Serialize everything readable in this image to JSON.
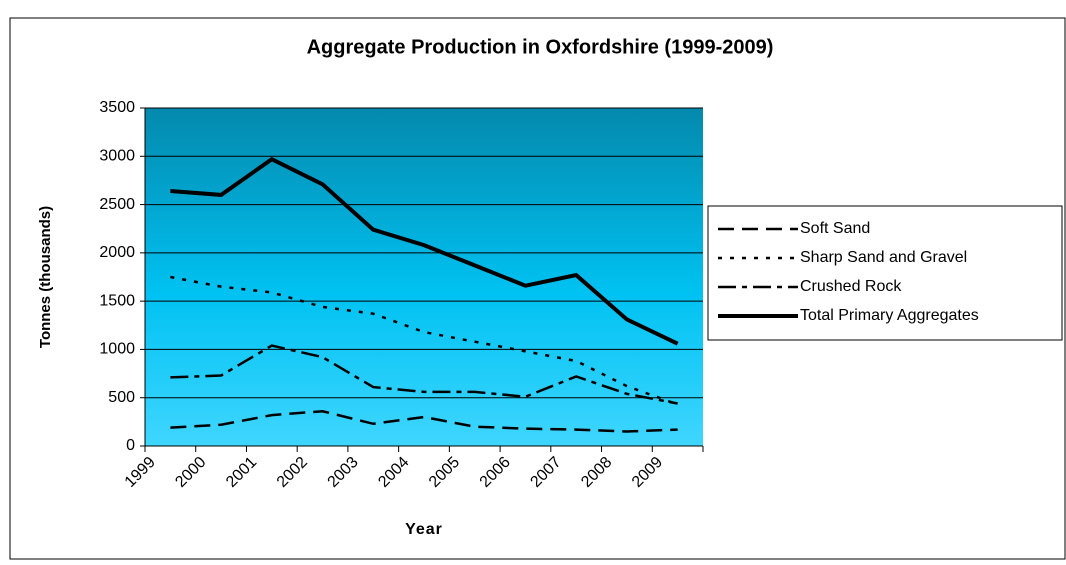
{
  "chart_data": {
    "type": "line",
    "title": "Aggregate Production in Oxfordshire (1999-2009)",
    "xlabel": "Year",
    "ylabel": "Tonnes (thousands)",
    "categories": [
      "1999",
      "2000",
      "2001",
      "2002",
      "2003",
      "2004",
      "2005",
      "2006",
      "2007",
      "2008",
      "2009"
    ],
    "series": [
      {
        "name": "Soft Sand",
        "color": "#000000",
        "dash": "16 8",
        "width": 2.5,
        "values": [
          190,
          220,
          320,
          360,
          230,
          300,
          200,
          180,
          170,
          150,
          170
        ]
      },
      {
        "name": "Sharp Sand and Gravel",
        "color": "#000000",
        "dash": "4 8",
        "width": 2.5,
        "values": [
          1750,
          1650,
          1590,
          1440,
          1370,
          1180,
          1080,
          980,
          880,
          620,
          430
        ]
      },
      {
        "name": "Crushed Rock",
        "color": "#000000",
        "dash": "18 6 5 6",
        "width": 2.5,
        "values": [
          710,
          730,
          1040,
          920,
          610,
          560,
          560,
          510,
          720,
          540,
          440
        ]
      },
      {
        "name": "Total Primary Aggregates",
        "color": "#000000",
        "dash": "none",
        "width": 4,
        "values": [
          2640,
          2600,
          2970,
          2710,
          2240,
          2080,
          1870,
          1660,
          1770,
          1310,
          1060
        ]
      }
    ],
    "ylim": [
      0,
      3500
    ],
    "yticks": [
      0,
      500,
      1000,
      1500,
      2000,
      2500,
      3000,
      3500
    ],
    "grid": true,
    "legend": "right"
  }
}
